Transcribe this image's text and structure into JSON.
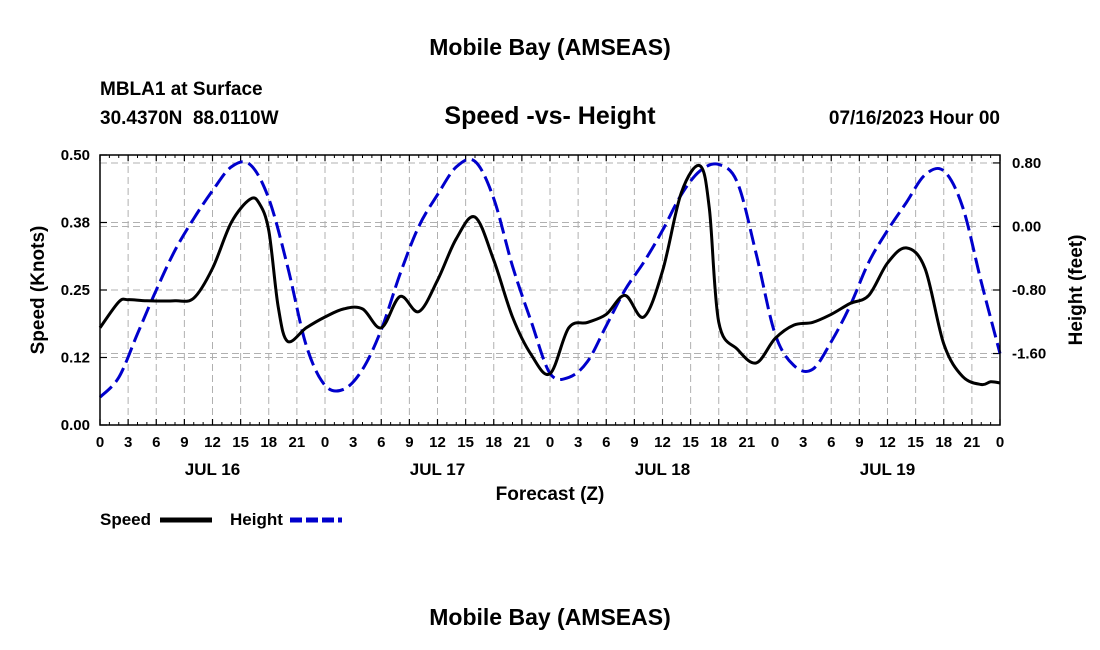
{
  "page": {
    "title_top": "Mobile Bay (AMSEAS)",
    "title_bottom": "Mobile Bay (AMSEAS)"
  },
  "header": {
    "station": "MBLA1 at Surface",
    "coords": "30.4370N  88.0110W",
    "subtitle": "Speed -vs- Height",
    "datetime": "07/16/2023 Hour 00"
  },
  "legend": {
    "speed_label": "Speed",
    "height_label": "Height"
  },
  "chart_data": {
    "type": "line",
    "title": "Speed -vs- Height",
    "xlabel": "Forecast (Z)",
    "ylabel": "Speed (Knots)",
    "ylabel_right": "Height (feet)",
    "x_range_hours": [
      0,
      96
    ],
    "ylim": [
      0,
      0.5
    ],
    "ylim_right": [
      -2.5,
      0.9
    ],
    "x_tick_labels": [
      "0",
      "3",
      "6",
      "9",
      "12",
      "15",
      "18",
      "21",
      "0",
      "3",
      "6",
      "9",
      "12",
      "15",
      "18",
      "21",
      "0",
      "3",
      "6",
      "9",
      "12",
      "15",
      "18",
      "21",
      "0",
      "3",
      "6",
      "9",
      "12",
      "15",
      "18",
      "21",
      "0"
    ],
    "day_labels": [
      "JUL 16",
      "JUL 17",
      "JUL 18",
      "JUL 19"
    ],
    "y_tick_labels": [
      "0.00",
      "0.12",
      "0.25",
      "0.38",
      "0.50"
    ],
    "y2_tick_labels": [
      "0.80",
      "0.00",
      "-0.80",
      "-1.60"
    ],
    "y2_tick_values": [
      0.8,
      0.0,
      -0.8,
      -1.6
    ],
    "series": [
      {
        "name": "Speed",
        "axis": "left",
        "color": "#000000",
        "x": [
          0,
          2,
          3,
          5,
          8,
          10,
          12,
          14,
          16,
          17,
          18,
          19,
          20,
          22,
          24,
          26,
          28,
          30,
          32,
          34,
          36,
          38,
          40,
          42,
          44,
          46,
          48,
          50,
          52,
          54,
          56,
          58,
          60,
          62,
          64,
          65,
          66,
          68,
          70,
          72,
          74,
          76,
          78,
          80,
          82,
          84,
          86,
          88,
          90,
          92,
          94,
          95,
          96
        ],
        "values": [
          0.18,
          0.228,
          0.232,
          0.23,
          0.23,
          0.235,
          0.29,
          0.375,
          0.418,
          0.41,
          0.36,
          0.22,
          0.155,
          0.18,
          0.2,
          0.215,
          0.215,
          0.18,
          0.238,
          0.21,
          0.268,
          0.345,
          0.385,
          0.305,
          0.2,
          0.13,
          0.095,
          0.18,
          0.19,
          0.205,
          0.24,
          0.2,
          0.285,
          0.43,
          0.48,
          0.4,
          0.19,
          0.14,
          0.115,
          0.16,
          0.185,
          0.19,
          0.205,
          0.225,
          0.24,
          0.3,
          0.328,
          0.29,
          0.15,
          0.09,
          0.075,
          0.08,
          0.078
        ]
      },
      {
        "name": "Height",
        "axis": "right",
        "color": "#0000cc",
        "dash": "dashed",
        "x": [
          0,
          2,
          4,
          6,
          8,
          10,
          12,
          14,
          16,
          18,
          20,
          22,
          24,
          26,
          28,
          30,
          32,
          34,
          36,
          38,
          40,
          42,
          44,
          46,
          48,
          50,
          52,
          54,
          56,
          58,
          60,
          62,
          64,
          66,
          68,
          70,
          72,
          74,
          76,
          78,
          80,
          82,
          84,
          86,
          88,
          90,
          92,
          94,
          96
        ],
        "values": [
          -2.15,
          -1.9,
          -1.35,
          -0.8,
          -0.3,
          0.1,
          0.45,
          0.75,
          0.78,
          0.35,
          -0.5,
          -1.5,
          -2.0,
          -2.05,
          -1.8,
          -1.3,
          -0.6,
          0.0,
          0.4,
          0.75,
          0.82,
          0.35,
          -0.5,
          -1.2,
          -1.85,
          -1.9,
          -1.7,
          -1.25,
          -0.8,
          -0.45,
          -0.05,
          0.4,
          0.7,
          0.78,
          0.55,
          -0.35,
          -1.35,
          -1.75,
          -1.8,
          -1.45,
          -1.0,
          -0.45,
          -0.05,
          0.3,
          0.65,
          0.7,
          0.25,
          -0.7,
          -1.6
        ]
      }
    ]
  }
}
